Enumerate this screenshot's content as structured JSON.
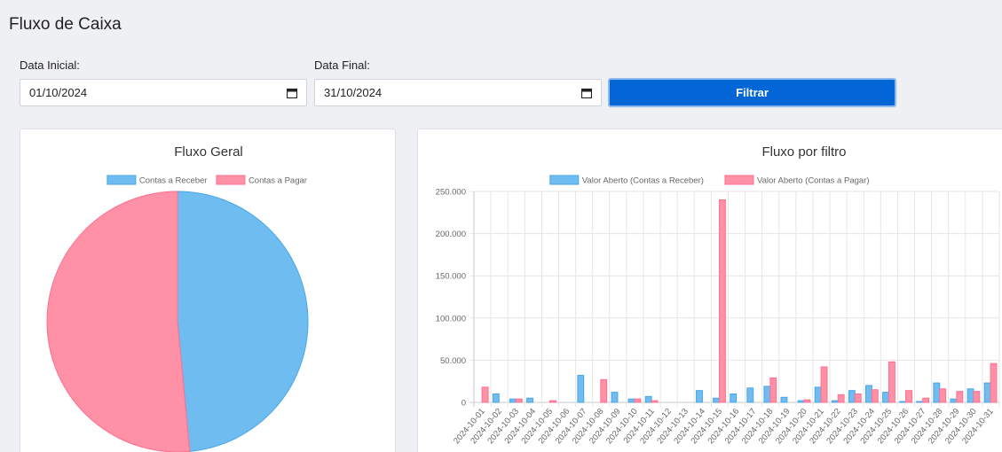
{
  "page": {
    "title": "Fluxo de Caixa"
  },
  "filters": {
    "start_label": "Data Inicial:",
    "start_value": "01/10/2024",
    "end_label": "Data Final:",
    "end_value": "31/10/2024",
    "button_label": "Filtrar",
    "button_color": "#0366d6"
  },
  "chart_data": [
    {
      "type": "pie",
      "title": "Fluxo Geral",
      "legend_position": "top",
      "labels": [
        "Contas a Receber",
        "Contas a Pagar"
      ],
      "values": [
        48.5,
        51.5
      ],
      "colors": [
        "#6fbcf0",
        "#ff91a7"
      ]
    },
    {
      "type": "bar",
      "title": "Fluxo por filtro",
      "legend_position": "top",
      "grid": true,
      "ylim": [
        0,
        250000
      ],
      "yticks": [
        "0",
        "50.000",
        "100.000",
        "150.000",
        "200.000",
        "250.000"
      ],
      "categories": [
        "2024-10-01",
        "2024-10-02",
        "2024-10-03",
        "2024-10-04",
        "2024-10-05",
        "2024-10-06",
        "2024-10-07",
        "2024-10-08",
        "2024-10-09",
        "2024-10-10",
        "2024-10-11",
        "2024-10-12",
        "2024-10-13",
        "2024-10-14",
        "2024-10-15",
        "2024-10-16",
        "2024-10-17",
        "2024-10-18",
        "2024-10-19",
        "2024-10-20",
        "2024-10-21",
        "2024-10-22",
        "2024-10-23",
        "2024-10-24",
        "2024-10-25",
        "2024-10-26",
        "2024-10-27",
        "2024-10-28",
        "2024-10-29",
        "2024-10-30",
        "2024-10-31"
      ],
      "series": [
        {
          "name": "Valor Aberto (Contas a Receber)",
          "color": "#6fbcf0",
          "values": [
            0,
            10000,
            4000,
            5000,
            0,
            0,
            32000,
            0,
            12000,
            4000,
            7000,
            0,
            0,
            14000,
            5000,
            10000,
            17000,
            19000,
            6000,
            2000,
            18000,
            2000,
            14000,
            20000,
            12000,
            1000,
            1000,
            23000,
            4000,
            16000,
            23000
          ]
        },
        {
          "name": "Valor Aberto (Contas a Pagar)",
          "color": "#ff91a7",
          "values": [
            18000,
            0,
            4000,
            0,
            2000,
            0,
            0,
            27000,
            0,
            4000,
            2000,
            0,
            0,
            0,
            240000,
            0,
            0,
            29000,
            0,
            3000,
            42000,
            9000,
            10000,
            15000,
            48000,
            14000,
            5000,
            16000,
            13000,
            13000,
            46000
          ]
        }
      ]
    }
  ]
}
